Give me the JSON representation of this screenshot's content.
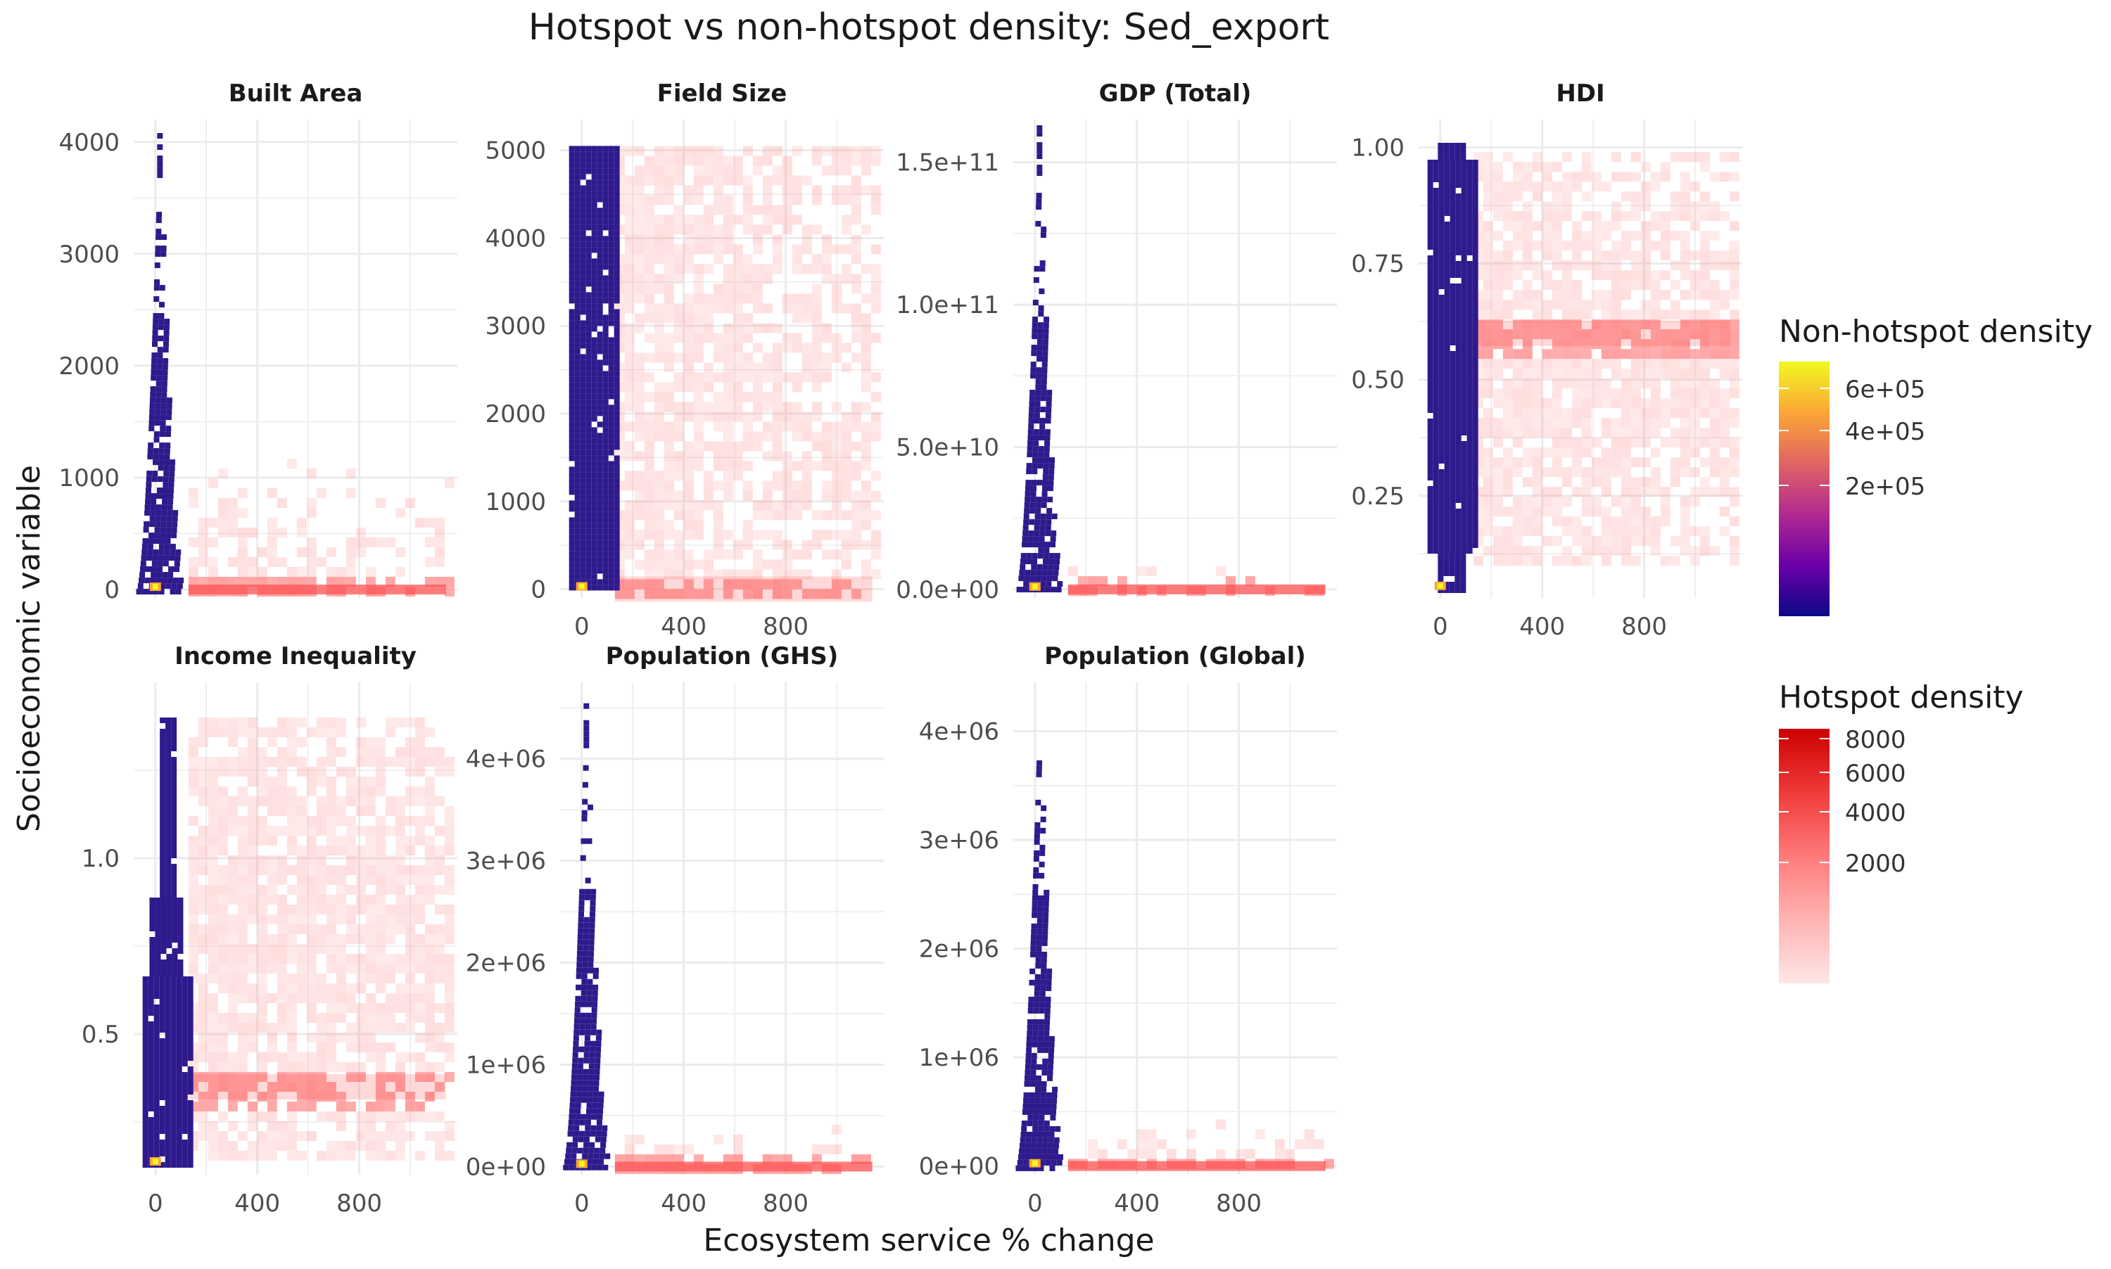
{
  "title": "Hotspot vs non-hotspot density: Sed_export",
  "xlabel": "Ecosystem service % change",
  "ylabel": "Socioeconomic variable",
  "legends": {
    "nonhotspot": {
      "title": "Non-hotspot density",
      "ticks": [
        "6e+05",
        "4e+05",
        "2e+05"
      ],
      "colors": [
        "#0d0887",
        "#6a00a8",
        "#b12a90",
        "#e16462",
        "#fca636",
        "#f0f921"
      ]
    },
    "hotspot": {
      "title": "Hotspot density",
      "ticks": [
        "8000",
        "6000",
        "4000",
        "2000"
      ],
      "colors": [
        "#ffe6e6",
        "#ffb3b3",
        "#ff7a7a",
        "#f03a3a",
        "#cc0000"
      ]
    }
  },
  "chart_data": [
    {
      "type": "heatmap",
      "title": "Built Area",
      "x_ticks": [
        "0",
        "400",
        "800"
      ],
      "x_tick_values": [
        0,
        400,
        800
      ],
      "xlim": [
        -85,
        1185
      ],
      "y_ticks": [
        "0",
        "1000",
        "2000",
        "3000",
        "4000"
      ],
      "y_tick_values": [
        0,
        1000,
        2000,
        3000,
        4000
      ],
      "ylim": [
        -75,
        4200
      ],
      "nonhotspot": {
        "x_range": [
          -50,
          130
        ],
        "y_max": 4080
      },
      "hotspot": {
        "x_range": [
          130,
          1140
        ],
        "y_max": 2050,
        "band_y": 0
      }
    },
    {
      "type": "heatmap",
      "title": "Field Size",
      "x_ticks": [
        "0",
        "400",
        "800"
      ],
      "x_tick_values": [
        0,
        400,
        800
      ],
      "xlim": [
        -85,
        1185
      ],
      "y_ticks": [
        "0",
        "1000",
        "2000",
        "3000",
        "4000",
        "5000"
      ],
      "y_tick_values": [
        0,
        1000,
        2000,
        3000,
        4000,
        5000
      ],
      "ylim": [
        -100,
        5350
      ],
      "nonhotspot": {
        "x_range": [
          -50,
          130
        ],
        "y_max": 5050
      },
      "hotspot": {
        "x_range": [
          130,
          1140
        ],
        "y_max": 5050,
        "band_y": 0
      }
    },
    {
      "type": "heatmap",
      "title": "GDP (Total)",
      "x_ticks": [
        "0",
        "400",
        "800"
      ],
      "x_tick_values": [
        0,
        400,
        800
      ],
      "xlim": [
        -85,
        1185
      ],
      "y_ticks": [
        "0.0e+00",
        "5.0e+10",
        "1.0e+11",
        "1.5e+11"
      ],
      "y_tick_values": [
        0,
        50000000000,
        100000000000,
        150000000000
      ],
      "ylim": [
        -3000000000,
        165000000000
      ],
      "nonhotspot": {
        "x_range": [
          -50,
          130
        ],
        "y_max": 163000000000
      },
      "hotspot": {
        "x_range": [
          130,
          1140
        ],
        "y_max": 15000000000,
        "band_y": 0
      }
    },
    {
      "type": "heatmap",
      "title": "HDI",
      "x_ticks": [
        "0",
        "400",
        "800"
      ],
      "x_tick_values": [
        0,
        400,
        800
      ],
      "xlim": [
        -85,
        1185
      ],
      "y_ticks": [
        "0.25",
        "0.50",
        "0.75",
        "1.00"
      ],
      "y_tick_values": [
        0.25,
        0.5,
        0.75,
        1.0
      ],
      "ylim": [
        0.03,
        1.06
      ],
      "nonhotspot": {
        "x_range": [
          -50,
          130
        ],
        "y_min": 0.05,
        "y_max": 1.01
      },
      "hotspot": {
        "x_range": [
          130,
          1140
        ],
        "y_min": 0.1,
        "y_max": 0.99,
        "band_y": 0.6
      }
    },
    {
      "type": "heatmap",
      "title": "Income Inequality",
      "x_ticks": [
        "0",
        "400",
        "800"
      ],
      "x_tick_values": [
        0,
        400,
        800
      ],
      "xlim": [
        -85,
        1185
      ],
      "y_ticks": [
        "0.5",
        "1.0"
      ],
      "y_tick_values": [
        0.5,
        1.0
      ],
      "ylim": [
        0.1,
        1.5
      ],
      "nonhotspot": {
        "x_range": [
          -50,
          130
        ],
        "y_min": 0.13,
        "y_max": 1.4
      },
      "hotspot": {
        "x_range": [
          130,
          1140
        ],
        "y_min": 0.15,
        "y_max": 1.4,
        "band_y": 0.35
      }
    },
    {
      "type": "heatmap",
      "title": "Population (GHS)",
      "x_ticks": [
        "0",
        "400",
        "800"
      ],
      "x_tick_values": [
        0,
        400,
        800
      ],
      "xlim": [
        -85,
        1185
      ],
      "y_ticks": [
        "0e+00",
        "1e+06",
        "2e+06",
        "3e+06",
        "4e+06"
      ],
      "y_tick_values": [
        0,
        1000000,
        2000000,
        3000000,
        4000000
      ],
      "ylim": [
        -80000,
        4750000
      ],
      "nonhotspot": {
        "x_range": [
          -50,
          130
        ],
        "y_max": 4600000
      },
      "hotspot": {
        "x_range": [
          130,
          1140
        ],
        "y_max": 700000,
        "band_y": 0
      }
    },
    {
      "type": "heatmap",
      "title": "Population (Global)",
      "x_ticks": [
        "0",
        "400",
        "800"
      ],
      "x_tick_values": [
        0,
        400,
        800
      ],
      "xlim": [
        -85,
        1185
      ],
      "y_ticks": [
        "0e+00",
        "1e+06",
        "2e+06",
        "3e+06",
        "4e+06"
      ],
      "y_tick_values": [
        0,
        1000000,
        2000000,
        3000000,
        4000000
      ],
      "ylim": [
        -80000,
        4450000
      ],
      "nonhotspot": {
        "x_range": [
          -50,
          130
        ],
        "y_max": 4250000
      },
      "hotspot": {
        "x_range": [
          130,
          1140
        ],
        "y_max": 700000,
        "band_y": 0
      }
    }
  ]
}
